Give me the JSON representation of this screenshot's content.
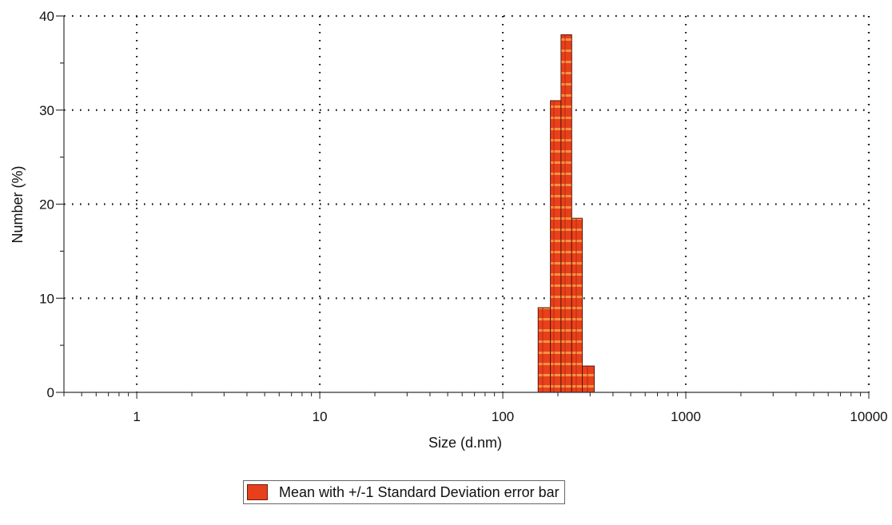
{
  "chart_data": {
    "type": "bar",
    "title": "",
    "xlabel": "Size (d.nm)",
    "ylabel": "Number (%)",
    "x_scale": "log",
    "xlim": [
      0.4,
      10000
    ],
    "ylim": [
      0,
      40
    ],
    "grid": true,
    "legend_position": "bottom-center",
    "x_ticks": [
      "1",
      "10",
      "100",
      "1000",
      "10000"
    ],
    "y_ticks": [
      "0",
      "10",
      "20",
      "30",
      "40"
    ],
    "bins": [
      {
        "x_start": 156,
        "x_end": 182,
        "value": 9
      },
      {
        "x_start": 182,
        "x_end": 208,
        "value": 31
      },
      {
        "x_start": 208,
        "x_end": 238,
        "value": 38
      },
      {
        "x_start": 238,
        "x_end": 272,
        "value": 18.5
      },
      {
        "x_start": 272,
        "x_end": 316,
        "value": 2.8
      }
    ],
    "series": [
      {
        "name": "Mean with +/-1 Standard Deviation error bar",
        "color": "#e8401c"
      }
    ]
  },
  "legend": {
    "label": "Mean with +/-1 Standard Deviation error bar"
  }
}
